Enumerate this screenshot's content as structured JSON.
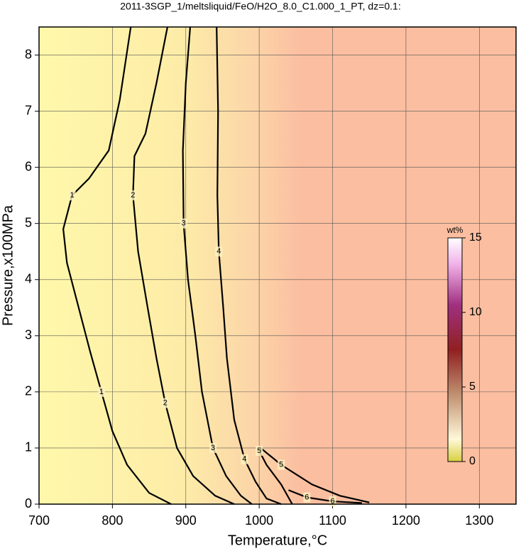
{
  "chart_data": {
    "type": "contour",
    "title": "2011-3SGP_1/meltsliquid/FeO/H2O_8.0_C1.000_1_PT, dz=0.1:",
    "x_label": "Temperature,°C",
    "y_label": "Pressure,x100MPa",
    "xlim": [
      700,
      1350
    ],
    "ylim": [
      0,
      8.5
    ],
    "xticks": [
      700,
      800,
      900,
      1000,
      1100,
      1200,
      1300
    ],
    "yticks": [
      0,
      1,
      2,
      3,
      4,
      5,
      6,
      7,
      8
    ],
    "grid": true,
    "series": [
      {
        "level": 1,
        "color": "#000000",
        "x": [
          825,
          810,
          795,
          768,
          745,
          733,
          738,
          752,
          770,
          785,
          800,
          820,
          850,
          880
        ],
        "y": [
          8.5,
          7.2,
          6.3,
          5.8,
          5.5,
          4.9,
          4.3,
          3.6,
          2.7,
          2.0,
          1.3,
          0.7,
          0.2,
          0
        ]
      },
      {
        "level": 2,
        "color": "#000000",
        "x": [
          875,
          860,
          845,
          830,
          828,
          835,
          848,
          860,
          872,
          888,
          910,
          940,
          966
        ],
        "y": [
          8.5,
          7.5,
          6.6,
          6.2,
          5.5,
          4.5,
          3.5,
          2.6,
          1.8,
          1.0,
          0.5,
          0.15,
          0
        ]
      },
      {
        "level": 3,
        "color": "#000000",
        "x": [
          906,
          900,
          896,
          897,
          903,
          913,
          922,
          937,
          955,
          975,
          990
        ],
        "y": [
          8.5,
          7.5,
          6.3,
          5.0,
          4.0,
          3.0,
          2.0,
          1.0,
          0.5,
          0.15,
          0
        ]
      },
      {
        "level": 4,
        "color": "#000000",
        "x": [
          942,
          944,
          943,
          945,
          951,
          956,
          966,
          980,
          995,
          1010,
          1030
        ],
        "y": [
          8.5,
          7.0,
          5.5,
          4.5,
          3.5,
          2.6,
          1.5,
          0.8,
          0.4,
          0.1,
          0
        ]
      },
      {
        "level": 5,
        "color": "#000000",
        "x": [
          1045,
          1030,
          1010,
          1000,
          1002,
          1030,
          1072,
          1110,
          1150
        ],
        "y": [
          0,
          0.35,
          0.7,
          0.95,
          1.0,
          0.7,
          0.35,
          0.15,
          0.03
        ]
      },
      {
        "level": 6,
        "color": "#000000",
        "x": [
          1040,
          1065,
          1100,
          1140
        ],
        "y": [
          0.25,
          0.12,
          0.05,
          0.02
        ]
      }
    ],
    "colorbar": {
      "label": "wt%",
      "lim": [
        0,
        15
      ],
      "ticks": [
        0,
        5,
        10,
        15
      ]
    }
  }
}
